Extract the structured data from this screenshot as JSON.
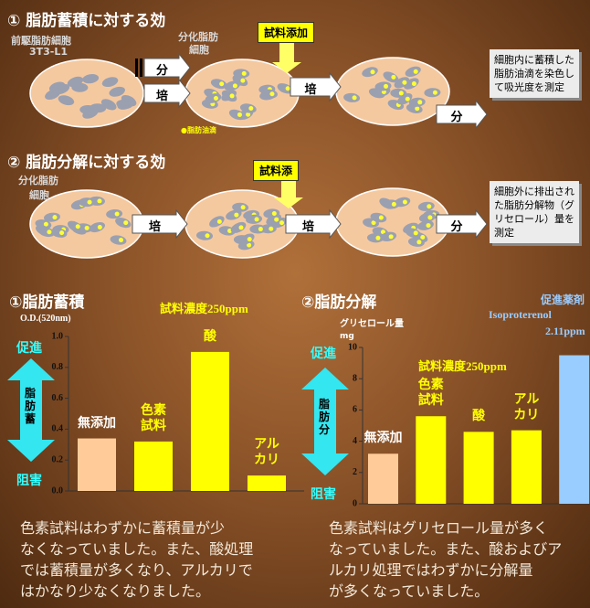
{
  "section1": {
    "title": "① 脂肪蓄積に対する効",
    "cell_label": [
      "前駆脂肪細胞",
      "3T3-L1"
    ],
    "differentiated_label": [
      "分化脂肪",
      "細胞"
    ],
    "sample_box": "試料添加",
    "steps": [
      "分",
      "培",
      "培",
      "分"
    ],
    "legend": "●脂肪油滴",
    "note": "細胞内に蓄積した脂肪油滴を染色して吸光度を測定"
  },
  "section2": {
    "title": "② 脂肪分解に対する効",
    "cell_label": [
      "分化脂肪",
      "細胞"
    ],
    "sample_box": "試料添",
    "steps": [
      "培",
      "培",
      "分"
    ],
    "note": "細胞外に排出された脂肪分解物（グリセロール）量を測定"
  },
  "chart_data": [
    {
      "type": "bar",
      "title": "①脂肪蓄積",
      "subtitle": "試料濃度250ppm",
      "y_label": "O.D.(520nm)",
      "categories": [
        "無添加",
        "色素\n試料",
        "酸",
        "アル\nカリ"
      ],
      "values": [
        0.34,
        0.32,
        0.9,
        0.1
      ],
      "colors": [
        "#ffcc99",
        "#ffff00",
        "#ffff00",
        "#ffff00"
      ],
      "label_colors": [
        "#ffffff",
        "#ffff00",
        "#ffff00",
        "#ffff00"
      ],
      "ylim": [
        0,
        1
      ],
      "yticks": [
        {
          "value": 0,
          "label": "0.0"
        },
        {
          "value": 0.2,
          "label": "0.2"
        },
        {
          "value": 0.4,
          "label": "0.4"
        },
        {
          "value": 0.6,
          "label": "0.6"
        },
        {
          "value": 0.8,
          "label": "0.8"
        },
        {
          "value": 1,
          "label": "1.0"
        }
      ],
      "arrow_labels": {
        "top": "促進",
        "middle": "脂肪蓄",
        "bottom": "阻害"
      }
    },
    {
      "type": "bar",
      "title": "②脂肪分解",
      "subtitle": "試料濃度250ppm",
      "y_label": "グリセロール量",
      "y_unit": "mg",
      "categories": [
        "無添加",
        "色素\n試料",
        "酸",
        "アル\nカリ",
        null
      ],
      "values": [
        3.2,
        5.6,
        4.6,
        4.7,
        9.5
      ],
      "colors": [
        "#ffcc99",
        "#ffff00",
        "#ffff00",
        "#ffff00",
        "#99ccff"
      ],
      "label_colors": [
        "#ffffff",
        "#ffff00",
        "#ffff00",
        "#ffff00",
        "#99ccff"
      ],
      "ylim": [
        0,
        10
      ],
      "yticks": [
        0,
        2,
        4,
        6,
        8,
        10
      ],
      "arrow_labels": {
        "top": "促進",
        "middle": "脂肪分",
        "bottom": "阻害"
      },
      "annotation": [
        "促進薬剤",
        "Isoproterenol",
        "2.11ppm"
      ]
    }
  ],
  "paragraphs": [
    [
      "色素試料はわずかに蓄積量が少",
      "なくなっていました。また、酸処理",
      "では蓄積量が多くなり、アルカリで",
      "はかなり少なくなりました。"
    ],
    [
      "色素試料はグリセロール量が多く",
      "なっていました。また、酸およびア",
      "ルカリ処理ではわずかに分解量",
      "が多くなっていました。"
    ]
  ]
}
